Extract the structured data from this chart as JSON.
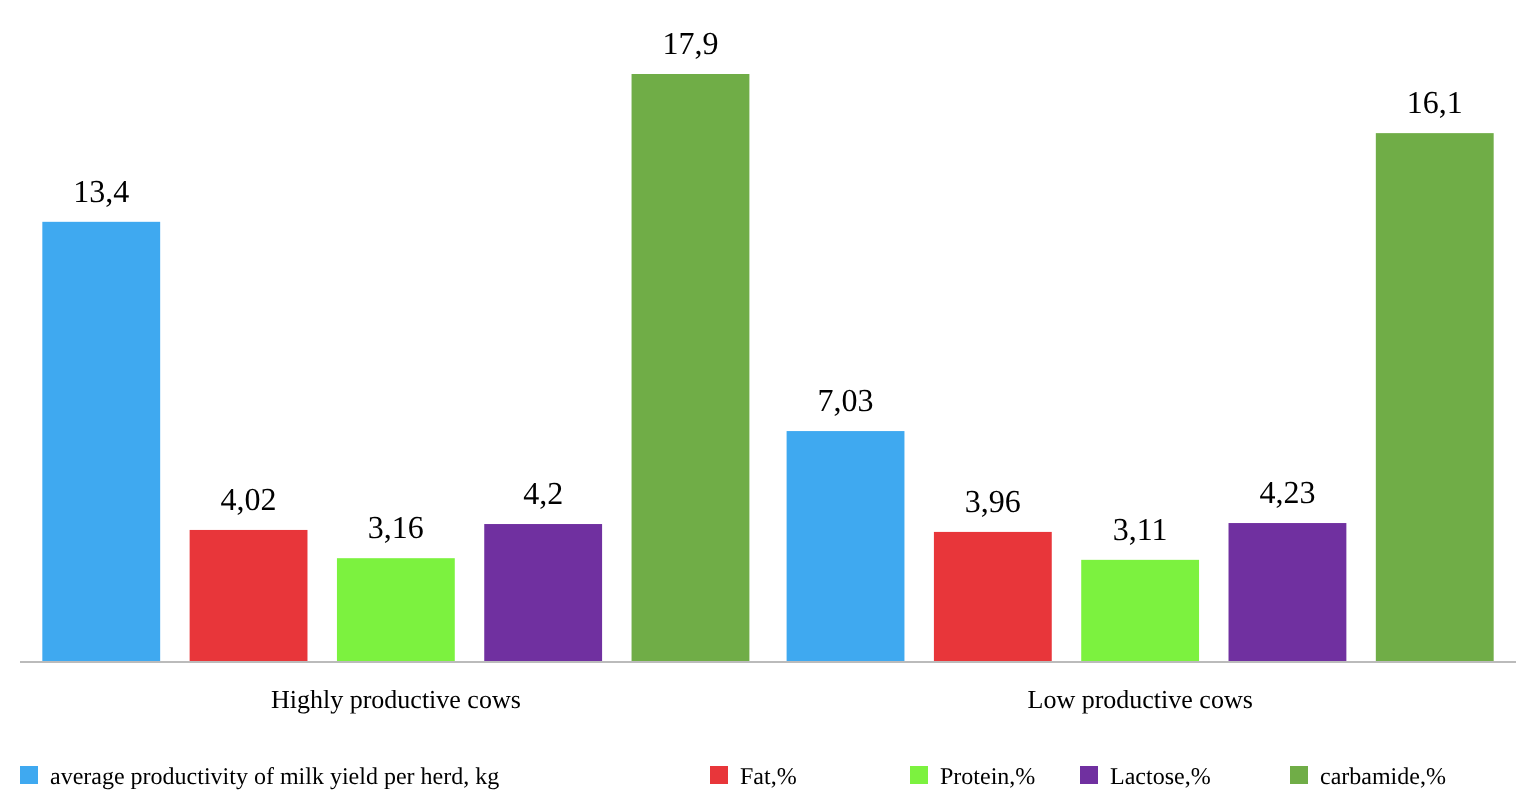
{
  "chart_data": {
    "type": "bar",
    "categories": [
      "Highly productive cows",
      "Low productive cows"
    ],
    "series": [
      {
        "name": "average productivity of milk yield per herd, kg",
        "color": "#3fa9f0",
        "values": [
          13.4,
          7.03
        ],
        "value_labels": [
          "13,4",
          "7,03"
        ]
      },
      {
        "name": "Fat,%",
        "color": "#e8363a",
        "values": [
          4.02,
          3.96
        ],
        "value_labels": [
          "4,02",
          "3,96"
        ]
      },
      {
        "name": "Protein,%",
        "color": "#7cf23f",
        "values": [
          3.16,
          3.11
        ],
        "value_labels": [
          "3,16",
          "3,11"
        ]
      },
      {
        "name": "Lactose,%",
        "color": "#7030a0",
        "values": [
          4.2,
          4.23
        ],
        "value_labels": [
          "4,2",
          "4,23"
        ]
      },
      {
        "name": "carbamide,%",
        "color": "#70ad47",
        "values": [
          17.9,
          16.1
        ],
        "value_labels": [
          "17,9",
          "16,1"
        ]
      }
    ],
    "legend": "bottom"
  }
}
